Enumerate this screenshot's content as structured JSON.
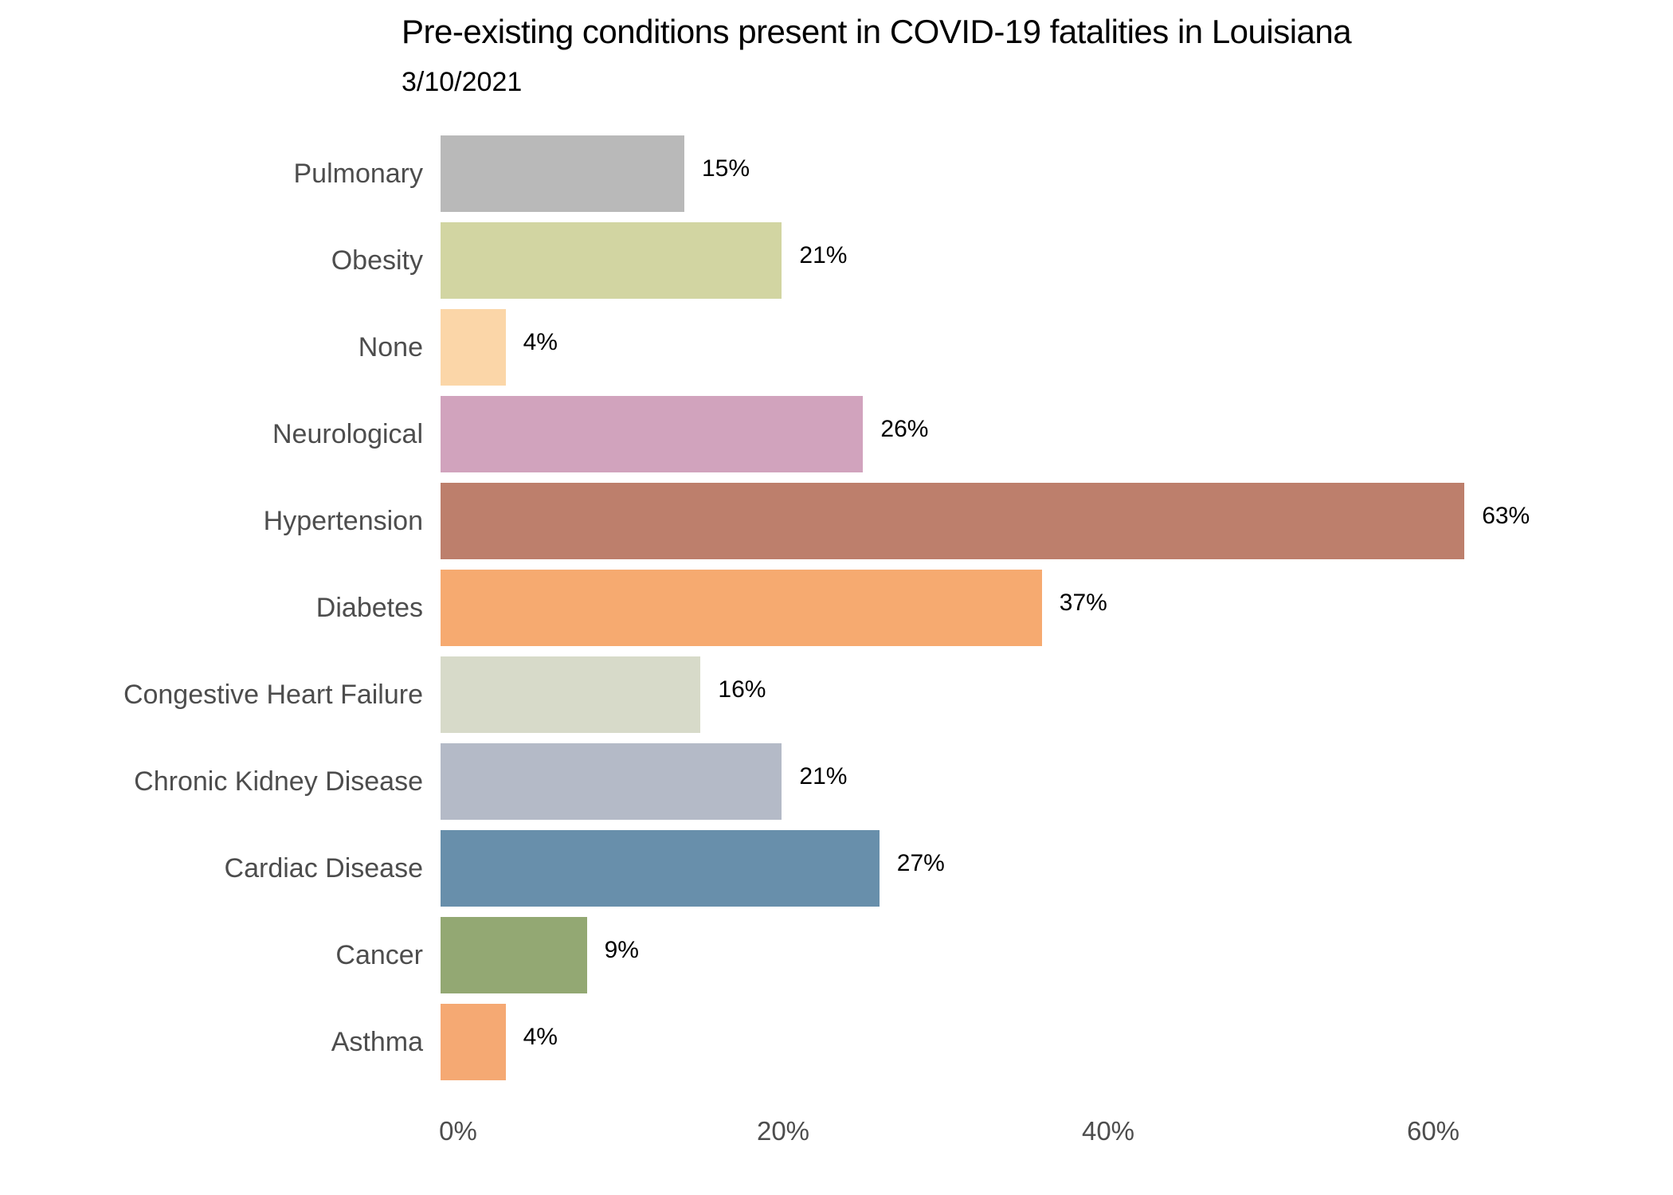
{
  "header": {
    "title": "Pre-existing conditions present in COVID-19 fatalities in Louisiana",
    "subtitle": "3/10/2021"
  },
  "chart_data": {
    "type": "bar",
    "orientation": "horizontal",
    "title": "Pre-existing conditions present in COVID-19 fatalities in Louisiana",
    "subtitle": "3/10/2021",
    "categories": [
      "Pulmonary",
      "Obesity",
      "None",
      "Neurological",
      "Hypertension",
      "Diabetes",
      "Congestive Heart Failure",
      "Chronic Kidney Disease",
      "Cardiac Disease",
      "Cancer",
      "Asthma"
    ],
    "values": [
      15,
      21,
      4,
      26,
      63,
      37,
      16,
      21,
      27,
      9,
      4
    ],
    "unit": "%",
    "value_labels": [
      "15%",
      "21%",
      "4%",
      "26%",
      "63%",
      "37%",
      "16%",
      "21%",
      "27%",
      "9%",
      "4%"
    ],
    "bar_colors": [
      "#b9b9b9",
      "#d2d5a2",
      "#fbd6a8",
      "#d1a3bd",
      "#bd7f6c",
      "#f6aa70",
      "#d7dac9",
      "#b4bac7",
      "#688fab",
      "#93a873",
      "#f5a973"
    ],
    "x_ticks": [
      {
        "value": 0,
        "label": "0%"
      },
      {
        "value": 20,
        "label": "20%"
      },
      {
        "value": 40,
        "label": "40%"
      },
      {
        "value": 60,
        "label": "60%"
      }
    ],
    "xlim": [
      0,
      66.5
    ],
    "ylabel": "",
    "xlabel": "",
    "grid": false,
    "legend": "none",
    "colors": {
      "title_text": "#000000",
      "category_text": "#4d4d4d",
      "value_text": "#000000",
      "axis_text": "#4d4d4d",
      "background": "#ffffff"
    }
  }
}
